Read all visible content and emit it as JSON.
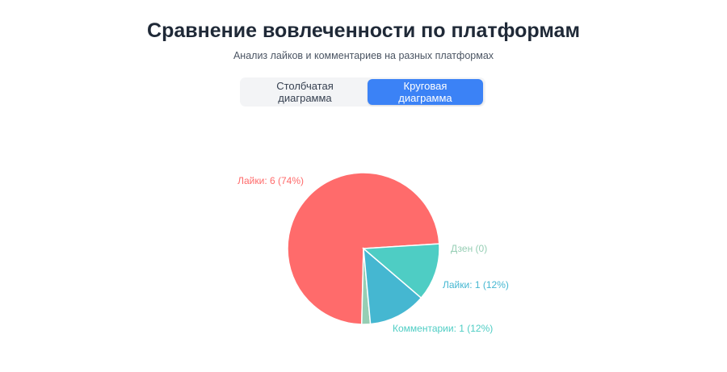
{
  "header": {
    "title": "Сравнение вовлеченности по платформам",
    "subtitle": "Анализ лайков и комментариев на разных платформах"
  },
  "toggle": {
    "bar_label": "Столбчатая диаграмма",
    "pie_label": "Круговая диаграмма",
    "active": "pie"
  },
  "colors": {
    "accent": "#3b82f6"
  },
  "chart_data": {
    "type": "pie",
    "title": "",
    "slices": [
      {
        "label": "Лайки: 6 (74%)",
        "value": 6,
        "color": "#ff6b6b",
        "label_color": "#ff6b6b"
      },
      {
        "label": "Дзен (0)",
        "value": 0.15,
        "color": "#96ceb4",
        "label_color": "#96ceb4"
      },
      {
        "label": "Лайки: 1 (12%)",
        "value": 1,
        "color": "#45b7d1",
        "label_color": "#45b7d1"
      },
      {
        "label": "Комментарии: 1 (12%)",
        "value": 1,
        "color": "#4ecdc4",
        "label_color": "#4ecdc4"
      }
    ]
  }
}
